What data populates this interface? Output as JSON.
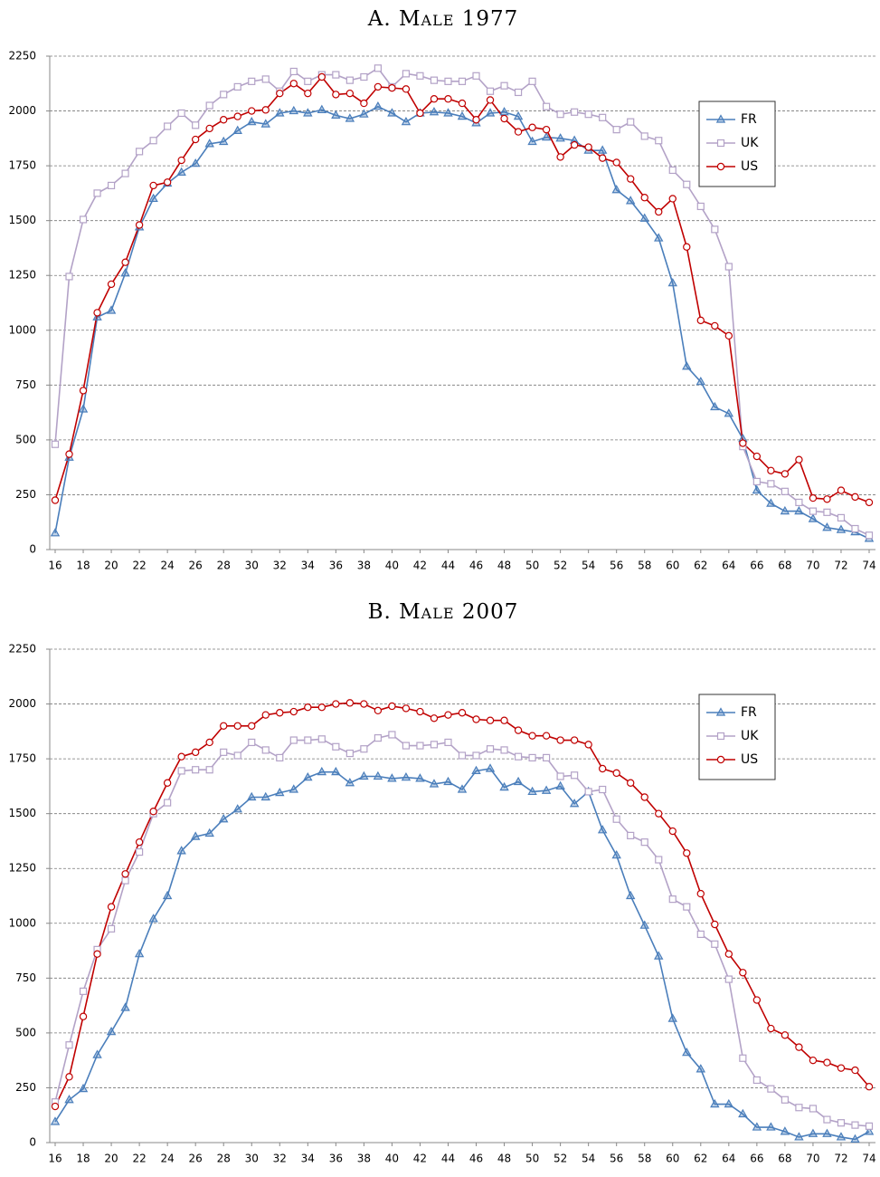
{
  "chart_data": [
    {
      "type": "line",
      "title": "A. Male 1977",
      "x": [
        16,
        17,
        18,
        19,
        20,
        21,
        22,
        23,
        24,
        25,
        26,
        27,
        28,
        29,
        30,
        31,
        32,
        33,
        34,
        35,
        36,
        37,
        38,
        39,
        40,
        41,
        42,
        43,
        44,
        45,
        46,
        47,
        48,
        49,
        50,
        51,
        52,
        53,
        54,
        55,
        56,
        57,
        58,
        59,
        60,
        61,
        62,
        63,
        64,
        65,
        66,
        67,
        68,
        69,
        70,
        71,
        72,
        73,
        74
      ],
      "xlim": [
        16,
        74
      ],
      "xticks": [
        16,
        18,
        20,
        22,
        24,
        26,
        28,
        30,
        32,
        34,
        36,
        38,
        40,
        42,
        44,
        46,
        48,
        50,
        52,
        54,
        56,
        58,
        60,
        62,
        64,
        66,
        68,
        70,
        72,
        74
      ],
      "ylim": [
        0,
        2250
      ],
      "yticks": [
        0,
        250,
        500,
        750,
        1000,
        1250,
        1500,
        1750,
        2000,
        2250
      ],
      "grid": true,
      "legend": "upper right",
      "series": [
        {
          "name": "FR",
          "color": "#4a7ebb",
          "marker": "triangle",
          "values": [
            75,
            420,
            640,
            1060,
            1090,
            1260,
            1470,
            1600,
            1670,
            1720,
            1760,
            1850,
            1860,
            1910,
            1950,
            1940,
            1990,
            2000,
            1990,
            2005,
            1980,
            1965,
            1985,
            2020,
            1990,
            1950,
            1990,
            1995,
            1990,
            1975,
            1945,
            1990,
            1995,
            1975,
            1860,
            1880,
            1875,
            1865,
            1820,
            1820,
            1640,
            1590,
            1510,
            1420,
            1215,
            835,
            765,
            650,
            620,
            505,
            270,
            210,
            175,
            175,
            140,
            100,
            90,
            80,
            50
          ]
        },
        {
          "name": "UK",
          "color": "#b3a2c7",
          "marker": "square",
          "values": [
            480,
            1245,
            1505,
            1625,
            1660,
            1715,
            1815,
            1865,
            1930,
            1990,
            1935,
            2025,
            2075,
            2110,
            2135,
            2145,
            2090,
            2180,
            2135,
            2165,
            2165,
            2140,
            2155,
            2195,
            2110,
            2170,
            2160,
            2140,
            2135,
            2135,
            2160,
            2090,
            2115,
            2085,
            2135,
            2020,
            1985,
            1995,
            1985,
            1970,
            1915,
            1950,
            1885,
            1865,
            1730,
            1665,
            1565,
            1460,
            1290,
            470,
            310,
            300,
            265,
            215,
            175,
            170,
            145,
            95,
            65
          ]
        },
        {
          "name": "US",
          "color": "#c00000",
          "marker": "circle",
          "values": [
            225,
            435,
            725,
            1080,
            1210,
            1310,
            1480,
            1660,
            1675,
            1775,
            1870,
            1920,
            1960,
            1975,
            2000,
            2005,
            2080,
            2125,
            2080,
            2155,
            2075,
            2080,
            2035,
            2110,
            2105,
            2100,
            1990,
            2055,
            2055,
            2035,
            1960,
            2050,
            1965,
            1905,
            1925,
            1915,
            1790,
            1845,
            1835,
            1785,
            1765,
            1690,
            1605,
            1540,
            1600,
            1380,
            1045,
            1020,
            975,
            485,
            425,
            360,
            345,
            410,
            235,
            230,
            270,
            240,
            215
          ]
        }
      ]
    },
    {
      "type": "line",
      "title": "B. Male 2007",
      "x": [
        16,
        17,
        18,
        19,
        20,
        21,
        22,
        23,
        24,
        25,
        26,
        27,
        28,
        29,
        30,
        31,
        32,
        33,
        34,
        35,
        36,
        37,
        38,
        39,
        40,
        41,
        42,
        43,
        44,
        45,
        46,
        47,
        48,
        49,
        50,
        51,
        52,
        53,
        54,
        55,
        56,
        57,
        58,
        59,
        60,
        61,
        62,
        63,
        64,
        65,
        66,
        67,
        68,
        69,
        70,
        71,
        72,
        73,
        74
      ],
      "xlim": [
        16,
        74
      ],
      "xticks": [
        16,
        18,
        20,
        22,
        24,
        26,
        28,
        30,
        32,
        34,
        36,
        38,
        40,
        42,
        44,
        46,
        48,
        50,
        52,
        54,
        56,
        58,
        60,
        62,
        64,
        66,
        68,
        70,
        72,
        74
      ],
      "ylim": [
        0,
        2250
      ],
      "yticks": [
        0,
        250,
        500,
        750,
        1000,
        1250,
        1500,
        1750,
        2000,
        2250
      ],
      "grid": true,
      "legend": "upper right",
      "series": [
        {
          "name": "FR",
          "color": "#4a7ebb",
          "marker": "triangle",
          "values": [
            95,
            195,
            245,
            400,
            505,
            615,
            860,
            1020,
            1125,
            1330,
            1395,
            1410,
            1475,
            1520,
            1575,
            1575,
            1595,
            1610,
            1665,
            1690,
            1690,
            1640,
            1670,
            1670,
            1660,
            1665,
            1660,
            1635,
            1645,
            1610,
            1695,
            1705,
            1620,
            1645,
            1600,
            1605,
            1625,
            1545,
            1600,
            1425,
            1310,
            1125,
            990,
            850,
            565,
            410,
            335,
            175,
            175,
            130,
            70,
            70,
            50,
            25,
            40,
            40,
            25,
            15,
            50
          ]
        },
        {
          "name": "UK",
          "color": "#b3a2c7",
          "marker": "square",
          "values": [
            185,
            445,
            690,
            880,
            975,
            1195,
            1325,
            1500,
            1550,
            1695,
            1700,
            1700,
            1780,
            1765,
            1825,
            1790,
            1755,
            1835,
            1835,
            1840,
            1805,
            1775,
            1795,
            1845,
            1860,
            1810,
            1810,
            1815,
            1825,
            1765,
            1765,
            1795,
            1790,
            1760,
            1755,
            1755,
            1670,
            1675,
            1600,
            1610,
            1475,
            1400,
            1370,
            1290,
            1110,
            1075,
            950,
            905,
            745,
            385,
            285,
            245,
            195,
            160,
            155,
            105,
            90,
            80,
            75
          ]
        },
        {
          "name": "US",
          "color": "#c00000",
          "marker": "circle",
          "values": [
            165,
            300,
            575,
            860,
            1075,
            1225,
            1370,
            1510,
            1640,
            1760,
            1780,
            1825,
            1900,
            1900,
            1900,
            1950,
            1960,
            1965,
            1985,
            1985,
            2000,
            2005,
            2000,
            1970,
            1990,
            1980,
            1965,
            1935,
            1950,
            1960,
            1930,
            1925,
            1925,
            1880,
            1855,
            1855,
            1835,
            1835,
            1815,
            1705,
            1685,
            1640,
            1575,
            1500,
            1420,
            1320,
            1135,
            995,
            860,
            775,
            650,
            520,
            490,
            435,
            375,
            365,
            340,
            330,
            255
          ]
        }
      ]
    }
  ]
}
